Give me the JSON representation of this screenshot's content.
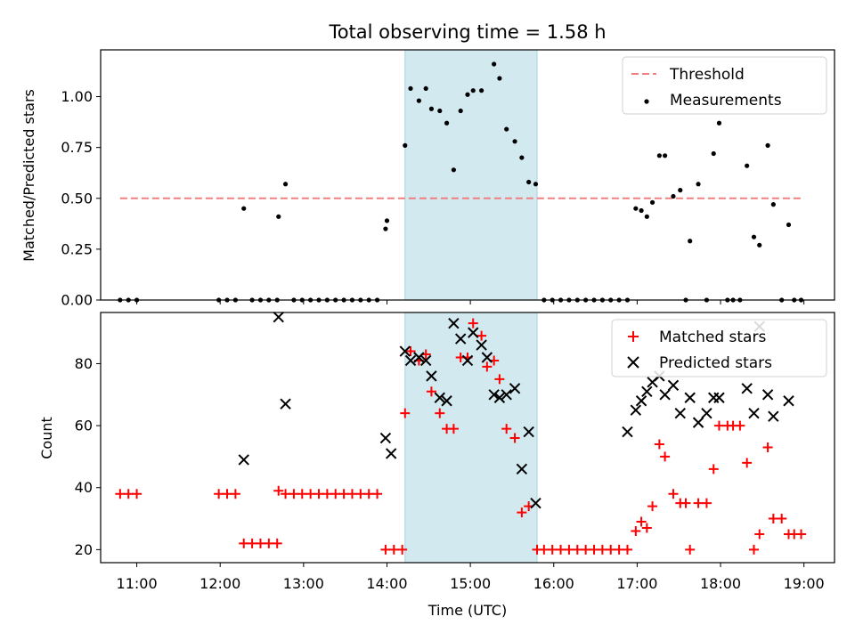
{
  "chart_data": {
    "type": "scatter",
    "title": "Total observing time = 1.58 h",
    "xlabel": "Time (UTC)",
    "x_ticks": [
      "11:00",
      "12:00",
      "13:00",
      "14:00",
      "15:00",
      "16:00",
      "17:00",
      "18:00",
      "19:00"
    ],
    "xlim": [
      "10:34",
      "19:22"
    ],
    "shaded_interval": [
      "14:13",
      "15:48"
    ],
    "colors": {
      "shade": "#d2e9f0",
      "threshold": "#f08080",
      "matched": "#ff0000",
      "predicted": "#000000",
      "measurements": "#000000"
    },
    "panels": [
      {
        "ylabel": "Matched/Predicted stars",
        "ylim": [
          0,
          1.23
        ],
        "y_ticks": [
          "0.00",
          "0.25",
          "0.50",
          "0.75",
          "1.00"
        ],
        "legend": [
          "Threshold",
          "Measurements"
        ],
        "legend_position": "top-right",
        "threshold": {
          "name": "Threshold",
          "value": 0.5,
          "x_range": [
            "10:48",
            "18:59"
          ]
        },
        "series": [
          {
            "name": "Measurements",
            "points": [
              [
                "10:48",
                0
              ],
              [
                "10:54",
                0
              ],
              [
                "11:00",
                0
              ],
              [
                "11:59",
                0
              ],
              [
                "12:05",
                0
              ],
              [
                "12:11",
                0
              ],
              [
                "12:17",
                0.45
              ],
              [
                "12:23",
                0
              ],
              [
                "12:29",
                0
              ],
              [
                "12:35",
                0
              ],
              [
                "12:41",
                0
              ],
              [
                "12:42",
                0.41
              ],
              [
                "12:47",
                0.57
              ],
              [
                "12:53",
                0
              ],
              [
                "12:59",
                0
              ],
              [
                "13:05",
                0
              ],
              [
                "13:11",
                0
              ],
              [
                "13:17",
                0
              ],
              [
                "13:23",
                0
              ],
              [
                "13:29",
                0
              ],
              [
                "13:35",
                0
              ],
              [
                "13:41",
                0
              ],
              [
                "13:47",
                0
              ],
              [
                "13:53",
                0
              ],
              [
                "13:59",
                0.35
              ],
              [
                "14:00",
                0.39
              ],
              [
                "14:13",
                0.76
              ],
              [
                "14:17",
                1.04
              ],
              [
                "14:23",
                0.98
              ],
              [
                "14:28",
                1.04
              ],
              [
                "14:32",
                0.94
              ],
              [
                "14:38",
                0.93
              ],
              [
                "14:43",
                0.87
              ],
              [
                "14:48",
                0.64
              ],
              [
                "14:53",
                0.93
              ],
              [
                "14:58",
                1.01
              ],
              [
                "15:02",
                1.03
              ],
              [
                "15:08",
                1.03
              ],
              [
                "15:17",
                1.16
              ],
              [
                "15:21",
                1.09
              ],
              [
                "15:26",
                0.84
              ],
              [
                "15:32",
                0.78
              ],
              [
                "15:37",
                0.7
              ],
              [
                "15:42",
                0.58
              ],
              [
                "15:47",
                0.57
              ],
              [
                "15:53",
                0
              ],
              [
                "15:59",
                0
              ],
              [
                "16:05",
                0
              ],
              [
                "16:11",
                0
              ],
              [
                "16:17",
                0
              ],
              [
                "16:23",
                0
              ],
              [
                "16:29",
                0
              ],
              [
                "16:35",
                0
              ],
              [
                "16:41",
                0
              ],
              [
                "16:47",
                0
              ],
              [
                "16:53",
                0
              ],
              [
                "16:59",
                0.45
              ],
              [
                "17:03",
                0.44
              ],
              [
                "17:07",
                0.41
              ],
              [
                "17:11",
                0.48
              ],
              [
                "17:16",
                0.71
              ],
              [
                "17:20",
                0.71
              ],
              [
                "17:26",
                0.51
              ],
              [
                "17:31",
                0.54
              ],
              [
                "17:35",
                0
              ],
              [
                "17:38",
                0.29
              ],
              [
                "17:44",
                0.57
              ],
              [
                "17:50",
                0
              ],
              [
                "17:55",
                0.72
              ],
              [
                "17:59",
                0.87
              ],
              [
                "18:05",
                0
              ],
              [
                "18:09",
                0
              ],
              [
                "18:14",
                0
              ],
              [
                "18:19",
                0.66
              ],
              [
                "18:24",
                0.31
              ],
              [
                "18:28",
                0.27
              ],
              [
                "18:34",
                0.76
              ],
              [
                "18:38",
                0.47
              ],
              [
                "18:44",
                0
              ],
              [
                "18:49",
                0.37
              ],
              [
                "18:53",
                0
              ],
              [
                "18:58",
                0
              ]
            ]
          }
        ]
      },
      {
        "ylabel": "Count",
        "ylim": [
          15.8,
          96.5
        ],
        "y_ticks": [
          "20",
          "40",
          "60",
          "80"
        ],
        "legend": [
          "Matched stars",
          "Predicted stars"
        ],
        "legend_position": "top-right",
        "series": [
          {
            "name": "Matched stars",
            "marker": "plus",
            "points": [
              [
                "10:48",
                38
              ],
              [
                "10:54",
                38
              ],
              [
                "11:00",
                38
              ],
              [
                "11:59",
                38
              ],
              [
                "12:05",
                38
              ],
              [
                "12:11",
                38
              ],
              [
                "12:17",
                22
              ],
              [
                "12:23",
                22
              ],
              [
                "12:29",
                22
              ],
              [
                "12:35",
                22
              ],
              [
                "12:41",
                22
              ],
              [
                "12:42",
                39
              ],
              [
                "12:47",
                38
              ],
              [
                "12:53",
                38
              ],
              [
                "12:59",
                38
              ],
              [
                "13:05",
                38
              ],
              [
                "13:11",
                38
              ],
              [
                "13:17",
                38
              ],
              [
                "13:23",
                38
              ],
              [
                "13:29",
                38
              ],
              [
                "13:35",
                38
              ],
              [
                "13:41",
                38
              ],
              [
                "13:47",
                38
              ],
              [
                "13:53",
                38
              ],
              [
                "13:59",
                20
              ],
              [
                "14:05",
                20
              ],
              [
                "14:11",
                20
              ],
              [
                "14:13",
                64
              ],
              [
                "14:17",
                84
              ],
              [
                "14:23",
                81
              ],
              [
                "14:28",
                83
              ],
              [
                "14:32",
                71
              ],
              [
                "14:38",
                64
              ],
              [
                "14:43",
                59
              ],
              [
                "14:48",
                59
              ],
              [
                "14:53",
                82
              ],
              [
                "14:58",
                82
              ],
              [
                "15:02",
                93
              ],
              [
                "15:08",
                89
              ],
              [
                "15:12",
                79
              ],
              [
                "15:17",
                81
              ],
              [
                "15:21",
                75
              ],
              [
                "15:26",
                59
              ],
              [
                "15:32",
                56
              ],
              [
                "15:37",
                32
              ],
              [
                "15:42",
                34
              ],
              [
                "15:48",
                20
              ],
              [
                "15:53",
                20
              ],
              [
                "15:59",
                20
              ],
              [
                "16:05",
                20
              ],
              [
                "16:11",
                20
              ],
              [
                "16:17",
                20
              ],
              [
                "16:23",
                20
              ],
              [
                "16:29",
                20
              ],
              [
                "16:35",
                20
              ],
              [
                "16:41",
                20
              ],
              [
                "16:47",
                20
              ],
              [
                "16:53",
                20
              ],
              [
                "16:59",
                26
              ],
              [
                "17:03",
                29
              ],
              [
                "17:07",
                27
              ],
              [
                "17:11",
                34
              ],
              [
                "17:16",
                54
              ],
              [
                "17:20",
                50
              ],
              [
                "17:26",
                38
              ],
              [
                "17:31",
                35
              ],
              [
                "17:35",
                35
              ],
              [
                "17:38",
                20
              ],
              [
                "17:44",
                35
              ],
              [
                "17:50",
                35
              ],
              [
                "17:55",
                46
              ],
              [
                "17:59",
                60
              ],
              [
                "18:05",
                60
              ],
              [
                "18:09",
                60
              ],
              [
                "18:14",
                60
              ],
              [
                "18:19",
                48
              ],
              [
                "18:24",
                20
              ],
              [
                "18:28",
                25
              ],
              [
                "18:34",
                53
              ],
              [
                "18:38",
                30
              ],
              [
                "18:44",
                30
              ],
              [
                "18:49",
                25
              ],
              [
                "18:53",
                25
              ],
              [
                "18:58",
                25
              ]
            ]
          },
          {
            "name": "Predicted stars",
            "marker": "x",
            "points": [
              [
                "12:17",
                49
              ],
              [
                "12:42",
                95
              ],
              [
                "12:47",
                67
              ],
              [
                "13:59",
                56
              ],
              [
                "14:03",
                51
              ],
              [
                "14:13",
                84
              ],
              [
                "14:17",
                81
              ],
              [
                "14:23",
                82
              ],
              [
                "14:28",
                81
              ],
              [
                "14:32",
                76
              ],
              [
                "14:38",
                69
              ],
              [
                "14:43",
                68
              ],
              [
                "14:48",
                93
              ],
              [
                "14:53",
                88
              ],
              [
                "14:58",
                81
              ],
              [
                "15:02",
                90
              ],
              [
                "15:08",
                86
              ],
              [
                "15:12",
                82
              ],
              [
                "15:17",
                70
              ],
              [
                "15:21",
                69
              ],
              [
                "15:26",
                70
              ],
              [
                "15:32",
                72
              ],
              [
                "15:37",
                46
              ],
              [
                "15:42",
                58
              ],
              [
                "15:47",
                35
              ],
              [
                "16:53",
                58
              ],
              [
                "16:59",
                65
              ],
              [
                "17:03",
                68
              ],
              [
                "17:07",
                71
              ],
              [
                "17:11",
                74
              ],
              [
                "17:16",
                76
              ],
              [
                "17:20",
                70
              ],
              [
                "17:26",
                73
              ],
              [
                "17:31",
                64
              ],
              [
                "17:38",
                69
              ],
              [
                "17:44",
                61
              ],
              [
                "17:50",
                64
              ],
              [
                "17:55",
                69
              ],
              [
                "17:59",
                69
              ],
              [
                "18:19",
                72
              ],
              [
                "18:24",
                64
              ],
              [
                "18:28",
                92
              ],
              [
                "18:34",
                70
              ],
              [
                "18:38",
                63
              ],
              [
                "18:49",
                68
              ]
            ]
          }
        ]
      }
    ]
  }
}
